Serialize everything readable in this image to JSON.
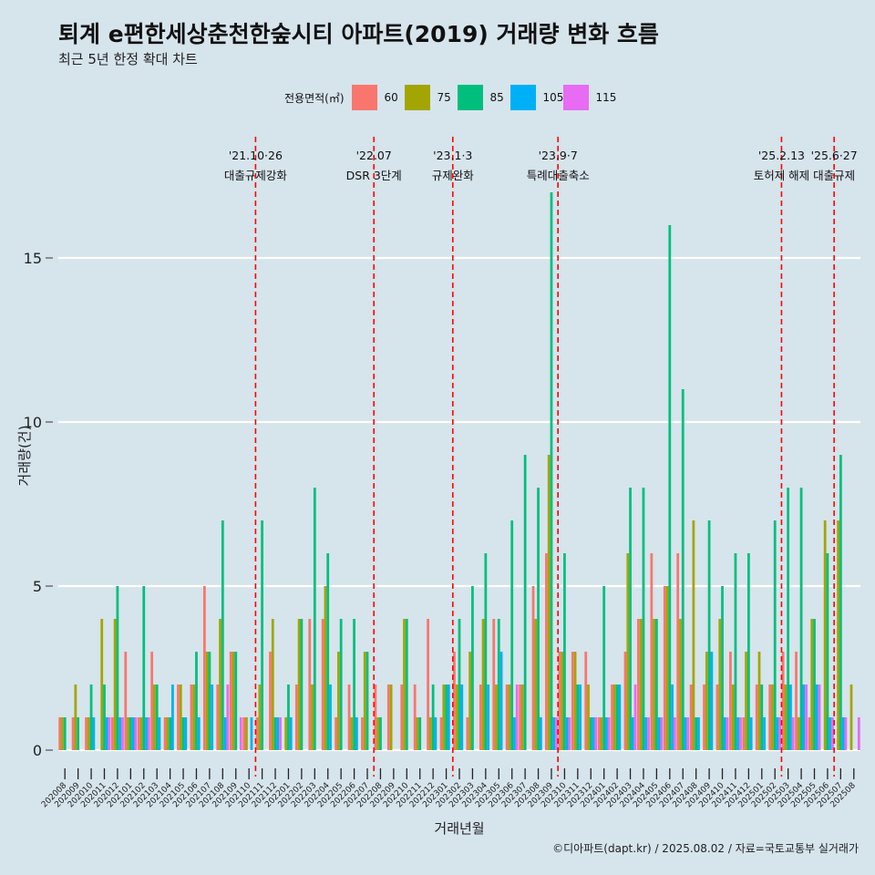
{
  "title": "퇴계 e편한세상춘천한숲시티 아파트(2019) 거래량 변화 흐름",
  "subtitle": "최근 5년 한정 확대 차트",
  "caption": "©디아파트(dapt.kr) / 2025.08.02 / 자료=국토교통부 실거래가",
  "chart_data": {
    "type": "bar",
    "xlabel": "거래년월",
    "ylabel": "거래량(건)",
    "ylim": [
      0,
      18
    ],
    "yticks": [
      0,
      5,
      10,
      15
    ],
    "grid": true,
    "legend": {
      "title": "전용면적(㎡)",
      "position": "top"
    },
    "categories": [
      "202008",
      "202009",
      "202010",
      "202011",
      "202012",
      "202101",
      "202102",
      "202103",
      "202104",
      "202105",
      "202106",
      "202107",
      "202108",
      "202109",
      "202110",
      "202111",
      "202112",
      "202201",
      "202202",
      "202203",
      "202204",
      "202205",
      "202206",
      "202207",
      "202208",
      "202209",
      "202210",
      "202211",
      "202212",
      "202301",
      "202302",
      "202303",
      "202304",
      "202305",
      "202306",
      "202307",
      "202308",
      "202309",
      "202310",
      "202311",
      "202312",
      "202401",
      "202402",
      "202403",
      "202404",
      "202405",
      "202406",
      "202407",
      "202408",
      "202409",
      "202410",
      "202411",
      "202412",
      "202501",
      "202502",
      "202503",
      "202504",
      "202505",
      "202506",
      "202507",
      "202508"
    ],
    "series": [
      {
        "name": "60",
        "color": "#f8766d",
        "values": [
          1,
          1,
          1,
          0,
          1,
          3,
          1,
          3,
          1,
          2,
          2,
          5,
          2,
          3,
          1,
          1,
          3,
          0,
          2,
          4,
          4,
          1,
          2,
          1,
          2,
          2,
          2,
          2,
          4,
          1,
          3,
          1,
          2,
          4,
          2,
          2,
          5,
          6,
          3,
          3,
          3,
          1,
          2,
          3,
          4,
          6,
          5,
          6,
          2,
          2,
          2,
          3,
          1,
          2,
          2,
          3,
          3,
          1,
          0,
          0,
          0
        ]
      },
      {
        "name": "75",
        "color": "#a3a500",
        "values": [
          1,
          2,
          1,
          4,
          4,
          1,
          1,
          2,
          1,
          2,
          2,
          3,
          4,
          3,
          1,
          2,
          4,
          1,
          4,
          2,
          5,
          3,
          1,
          3,
          1,
          2,
          4,
          1,
          1,
          2,
          2,
          3,
          4,
          2,
          2,
          2,
          4,
          9,
          3,
          3,
          2,
          1,
          2,
          6,
          4,
          4,
          5,
          4,
          7,
          3,
          4,
          2,
          3,
          3,
          2,
          2,
          1,
          4,
          7,
          7,
          2
        ]
      },
      {
        "name": "85",
        "color": "#00bf7d",
        "values": [
          1,
          1,
          2,
          2,
          5,
          1,
          5,
          2,
          1,
          1,
          3,
          3,
          7,
          3,
          0,
          7,
          1,
          2,
          4,
          8,
          6,
          4,
          4,
          3,
          1,
          0,
          4,
          1,
          2,
          2,
          4,
          5,
          6,
          4,
          7,
          9,
          8,
          17,
          6,
          2,
          1,
          5,
          2,
          8,
          8,
          4,
          16,
          11,
          1,
          7,
          5,
          6,
          6,
          2,
          7,
          8,
          8,
          4,
          6,
          9,
          0
        ]
      },
      {
        "name": "105",
        "color": "#00b0f6",
        "values": [
          0,
          0,
          1,
          1,
          1,
          1,
          1,
          1,
          2,
          1,
          1,
          2,
          1,
          0,
          1,
          0,
          1,
          1,
          0,
          0,
          2,
          0,
          1,
          0,
          0,
          0,
          0,
          0,
          1,
          2,
          2,
          0,
          2,
          3,
          1,
          0,
          1,
          1,
          1,
          2,
          1,
          1,
          2,
          1,
          1,
          1,
          2,
          1,
          1,
          3,
          1,
          1,
          1,
          1,
          1,
          2,
          2,
          2,
          1,
          1,
          0
        ]
      },
      {
        "name": "115",
        "color": "#e76bf3",
        "values": [
          0,
          0,
          0,
          1,
          1,
          1,
          1,
          0,
          0,
          0,
          0,
          0,
          2,
          1,
          0,
          0,
          1,
          0,
          0,
          0,
          0,
          0,
          0,
          0,
          0,
          0,
          0,
          0,
          0,
          0,
          0,
          0,
          0,
          0,
          2,
          0,
          0,
          1,
          1,
          0,
          1,
          1,
          0,
          2,
          1,
          1,
          1,
          1,
          0,
          0,
          1,
          1,
          0,
          0,
          1,
          1,
          2,
          2,
          1,
          1,
          1
        ]
      }
    ],
    "events": [
      {
        "date": "'21.10·26",
        "label": "대출규제강화",
        "after": "202110"
      },
      {
        "date": "'22.07",
        "label": "DSR 3단계",
        "after": "202207"
      },
      {
        "date": "'23.1·3",
        "label": "규제완화",
        "after": "202301"
      },
      {
        "date": "'23.9·7",
        "label": "특례대출축소",
        "after": "202309"
      },
      {
        "date": "'25.2.13",
        "label": "토허제 해제",
        "after": "202502"
      },
      {
        "date": "'25.6·27",
        "label": "대출규제",
        "after": "202506"
      }
    ]
  }
}
